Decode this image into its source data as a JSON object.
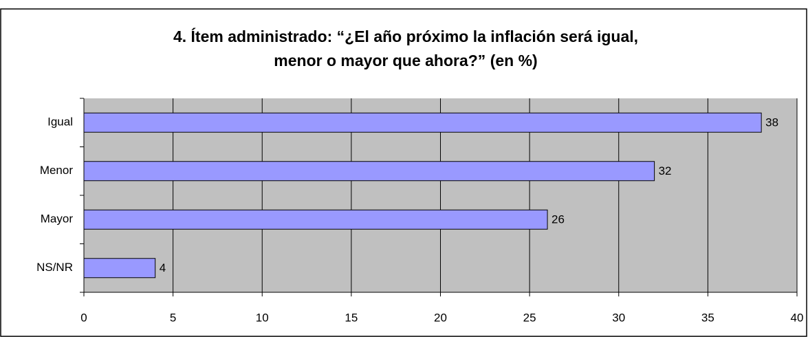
{
  "chart_data": {
    "type": "bar",
    "orientation": "horizontal",
    "title": [
      "4. Ítem administrado: “¿El año próximo la inflación será igual,",
      "menor o mayor que ahora?” (en %)"
    ],
    "categories": [
      "Igual",
      "Menor",
      "Mayor",
      "NS/NR"
    ],
    "values": [
      38,
      32,
      26,
      4
    ],
    "color": "#9999ff",
    "xlim": [
      0,
      40
    ],
    "xticks": [
      0,
      5,
      10,
      15,
      20,
      25,
      30,
      35,
      40
    ],
    "grid": true,
    "data_labels": true
  }
}
